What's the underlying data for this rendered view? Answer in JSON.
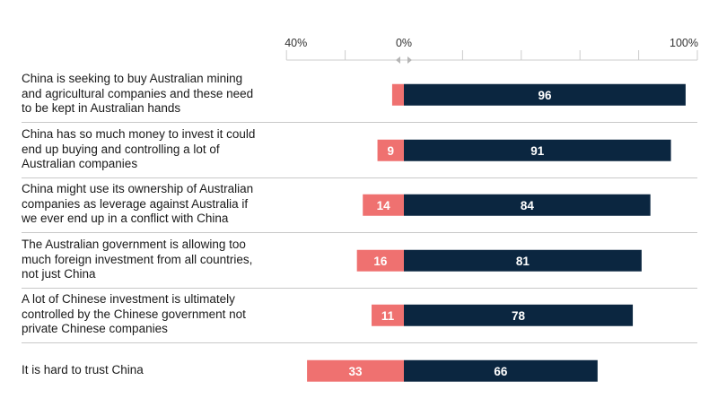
{
  "chart_data": {
    "type": "bar",
    "orientation": "horizontal-diverging",
    "axis": {
      "tick_labels": [
        "40%",
        "0%",
        "100%"
      ],
      "ticks": [
        -40,
        0,
        100
      ],
      "range": [
        -40,
        100
      ],
      "grid_step": 20
    },
    "colors": {
      "negative": "#ef7170",
      "positive": "#0b2640",
      "label_text": "#ffffff",
      "grid": "#cccccc",
      "separator": "#c8c8c8"
    },
    "categories": [
      "China is seeking to buy Australian mining and agricultural companies and these need to be kept in Australian hands",
      "China has so much money to invest it could end up buying and controlling a lot of Australian companies",
      "China might use its ownership of Australian companies as leverage against Australia if we ever end up in a conflict with China",
      "The Australian government is allowing too much foreign investment from all countries, not just China",
      "A lot of Chinese investment is ultimately controlled by the Chinese government not private Chinese companies",
      "It is hard to trust China"
    ],
    "label_lines": [
      [
        "China is seeking to buy Australian mining",
        "and agricultural companies and these need",
        "to be kept in Australian hands"
      ],
      [
        "China has so much money to invest it could",
        "end up buying and controlling a lot of",
        "Australian companies"
      ],
      [
        "China might use its ownership of Australian",
        "companies as leverage against Australia if",
        "we ever end up in a conflict with China"
      ],
      [
        "The Australian government is allowing too",
        "much foreign investment from all countries,",
        "not just China"
      ],
      [
        "A lot of Chinese investment is ultimately",
        "controlled by the Chinese government not",
        "private Chinese companies"
      ],
      [
        "It is hard to trust China"
      ]
    ],
    "series": [
      {
        "values": [
          4,
          9,
          14,
          16,
          11,
          33
        ],
        "labels": [
          "",
          "9",
          "14",
          "16",
          "11",
          "33"
        ]
      },
      {
        "values": [
          96,
          91,
          84,
          81,
          78,
          66
        ],
        "labels": [
          "96",
          "91",
          "84",
          "81",
          "78",
          "66"
        ]
      }
    ]
  }
}
